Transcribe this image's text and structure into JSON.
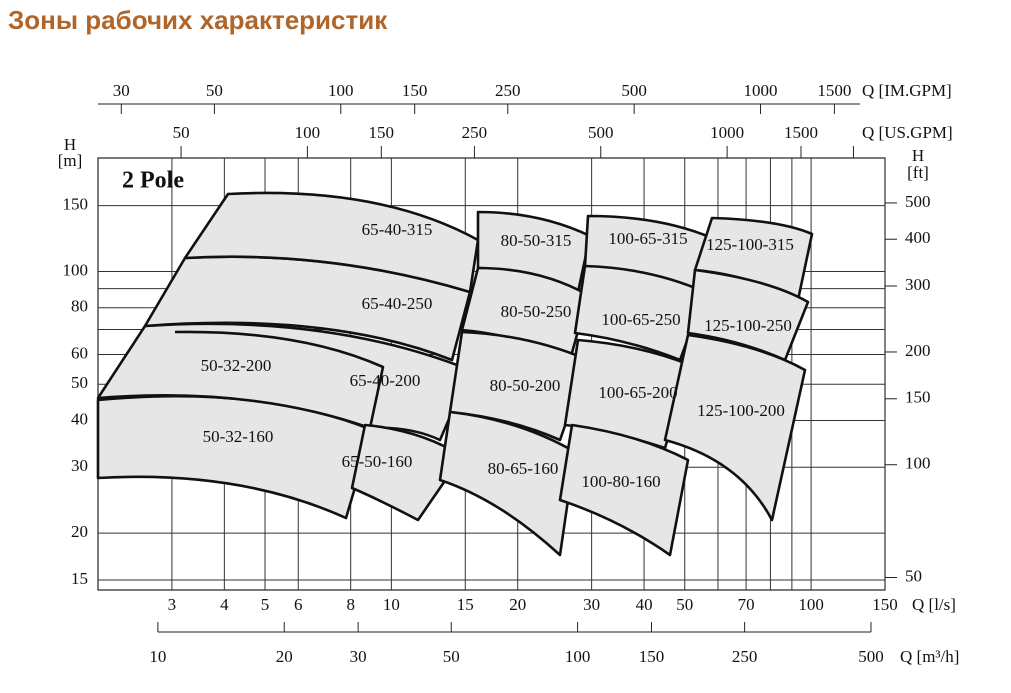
{
  "chart_data": {
    "type": "zone",
    "title": "Зоны рабочих характеристик",
    "annotation": "2 Pole",
    "xlabel": "Q [l/s]",
    "ylabel": "H",
    "yunit": "[m]",
    "y2label": "H",
    "y2unit": "[ft]",
    "xlog": true,
    "ylog": true,
    "grid": true,
    "xlim": [
      2,
      150
    ],
    "xticks": [
      3,
      4,
      5,
      6,
      8,
      10,
      15,
      20,
      30,
      40,
      50,
      70,
      100,
      150
    ],
    "xminor_ticks": [
      60,
      80,
      90
    ],
    "ylim": [
      14.1,
      201
    ],
    "yticks": [
      15,
      20,
      30,
      40,
      50,
      60,
      80,
      100,
      150
    ],
    "yminor_ticks": [
      70,
      90
    ],
    "y2lim": [
      46.3,
      659
    ],
    "y2ticks": [
      50,
      100,
      150,
      200,
      300,
      400,
      500
    ],
    "top_axes": [
      {
        "label": "Q [IM.GPM]",
        "lim": [
          26.4,
          1980
        ],
        "ticks": [
          30,
          50,
          100,
          150,
          250,
          500,
          1000,
          1500
        ]
      },
      {
        "label": "Q [US.GPM]",
        "lim": [
          31.7,
          2378
        ],
        "ticks": [
          50,
          100,
          150,
          250,
          500,
          1000,
          1500
        ],
        "minor_ticks": [
          2000
        ]
      }
    ],
    "bottom_axis": {
      "label": "Q [m³/h]",
      "lim": [
        7.2,
        540
      ],
      "ticks": [
        10,
        20,
        30,
        50,
        100,
        150,
        250,
        500
      ]
    },
    "zone_color": "#e6e6e6",
    "zones": [
      "50-32-160",
      "50-32-200",
      "65-40-200",
      "65-40-250",
      "65-40-315",
      "65-50-160",
      "80-50-315",
      "100-65-315",
      "125-100-315",
      "80-50-250",
      "100-65-250",
      "125-100-250",
      "80-50-200",
      "100-65-200",
      "125-100-200",
      "80-65-160",
      "100-80-160"
    ]
  }
}
